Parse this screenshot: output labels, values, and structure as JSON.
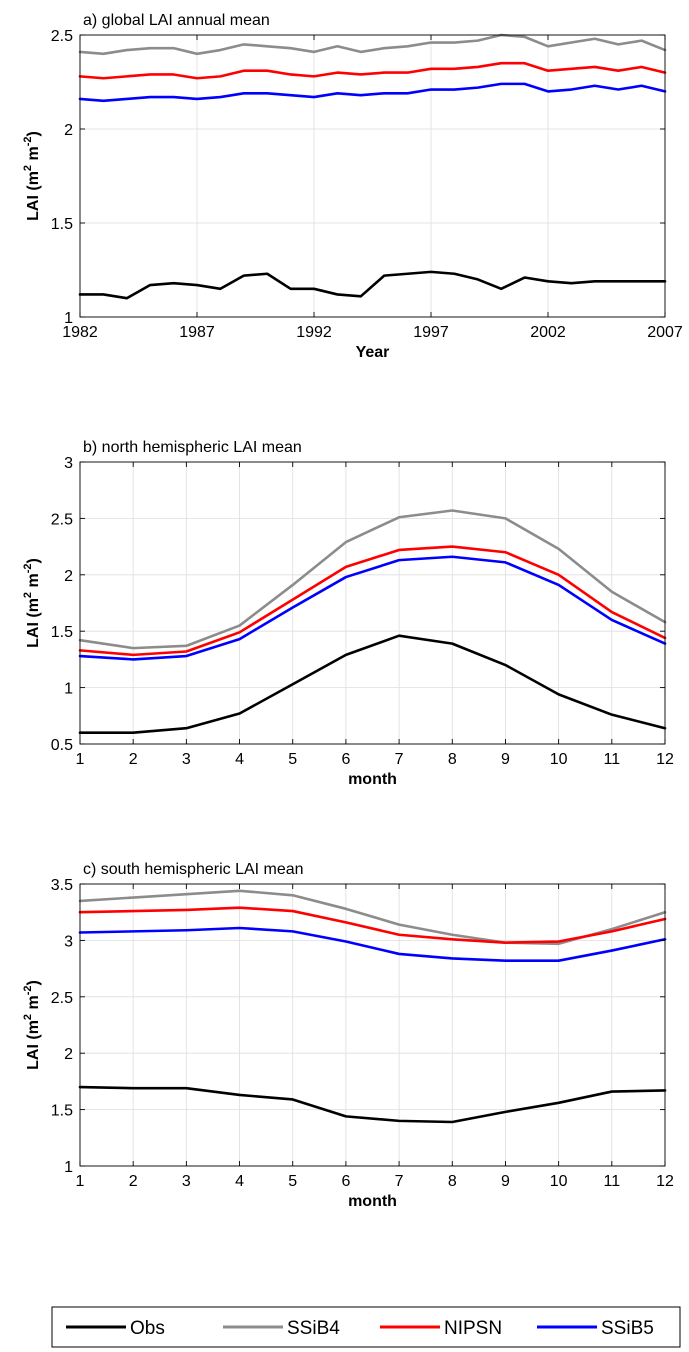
{
  "chart_data": [
    {
      "type": "line",
      "title": "a) global LAI annual mean",
      "xlabel": "Year",
      "ylabel": "LAI (m^2 m^-2)",
      "ylabel_parts": {
        "base": "LAI (m",
        "sup1": "2",
        "mid": " m",
        "sup2": "-2",
        "end": ")"
      },
      "xlim": [
        1982,
        2007
      ],
      "ylim": [
        1,
        2.5
      ],
      "xticks": [
        1982,
        1987,
        1992,
        1997,
        2002,
        2007
      ],
      "yticks": [
        1,
        1.5,
        2,
        2.5
      ],
      "ytick_labels": [
        "1",
        "1.5",
        "2",
        "2.5"
      ],
      "grid": true,
      "x": [
        1982,
        1983,
        1984,
        1985,
        1986,
        1987,
        1988,
        1989,
        1990,
        1991,
        1992,
        1993,
        1994,
        1995,
        1996,
        1997,
        1998,
        1999,
        2000,
        2001,
        2002,
        2003,
        2004,
        2005,
        2006,
        2007
      ],
      "series": [
        {
          "name": "Obs",
          "color": "#000000",
          "values": [
            1.12,
            1.12,
            1.1,
            1.17,
            1.18,
            1.17,
            1.15,
            1.22,
            1.23,
            1.15,
            1.15,
            1.12,
            1.11,
            1.22,
            1.23,
            1.24,
            1.23,
            1.2,
            1.15,
            1.21,
            1.19,
            1.18,
            1.19,
            1.19,
            1.19,
            1.19
          ]
        },
        {
          "name": "SSiB4",
          "color": "#8c8c8c",
          "values": [
            2.41,
            2.4,
            2.42,
            2.43,
            2.43,
            2.4,
            2.42,
            2.45,
            2.44,
            2.43,
            2.41,
            2.44,
            2.41,
            2.43,
            2.44,
            2.46,
            2.46,
            2.47,
            2.5,
            2.49,
            2.44,
            2.46,
            2.48,
            2.45,
            2.47,
            2.42
          ]
        },
        {
          "name": "NIPSN",
          "color": "#ff0000",
          "values": [
            2.28,
            2.27,
            2.28,
            2.29,
            2.29,
            2.27,
            2.28,
            2.31,
            2.31,
            2.29,
            2.28,
            2.3,
            2.29,
            2.3,
            2.3,
            2.32,
            2.32,
            2.33,
            2.35,
            2.35,
            2.31,
            2.32,
            2.33,
            2.31,
            2.33,
            2.3
          ]
        },
        {
          "name": "SSiB5",
          "color": "#0000ff",
          "values": [
            2.16,
            2.15,
            2.16,
            2.17,
            2.17,
            2.16,
            2.17,
            2.19,
            2.19,
            2.18,
            2.17,
            2.19,
            2.18,
            2.19,
            2.19,
            2.21,
            2.21,
            2.22,
            2.24,
            2.24,
            2.2,
            2.21,
            2.23,
            2.21,
            2.23,
            2.2
          ]
        }
      ]
    },
    {
      "type": "line",
      "title": "b) north hemispheric LAI mean",
      "xlabel": "month",
      "ylabel": "LAI (m^2 m^-2)",
      "ylabel_parts": {
        "base": "LAI (m",
        "sup1": "2",
        "mid": " m",
        "sup2": "-2",
        "end": ")"
      },
      "xlim": [
        1,
        12
      ],
      "ylim": [
        0.5,
        3
      ],
      "xticks": [
        1,
        2,
        3,
        4,
        5,
        6,
        7,
        8,
        9,
        10,
        11,
        12
      ],
      "yticks": [
        0.5,
        1,
        1.5,
        2,
        2.5,
        3
      ],
      "ytick_labels": [
        "0.5",
        "1",
        "1.5",
        "2",
        "2.5",
        "3"
      ],
      "grid": true,
      "x": [
        1,
        2,
        3,
        4,
        5,
        6,
        7,
        8,
        9,
        10,
        11,
        12
      ],
      "series": [
        {
          "name": "Obs",
          "color": "#000000",
          "values": [
            0.6,
            0.6,
            0.64,
            0.77,
            1.03,
            1.29,
            1.46,
            1.39,
            1.2,
            0.94,
            0.76,
            0.64
          ]
        },
        {
          "name": "SSiB4",
          "color": "#8c8c8c",
          "values": [
            1.42,
            1.35,
            1.37,
            1.55,
            1.91,
            2.29,
            2.51,
            2.57,
            2.5,
            2.23,
            1.85,
            1.58
          ]
        },
        {
          "name": "NIPSN",
          "color": "#ff0000",
          "values": [
            1.33,
            1.29,
            1.32,
            1.49,
            1.78,
            2.07,
            2.22,
            2.25,
            2.2,
            2.0,
            1.67,
            1.44
          ]
        },
        {
          "name": "SSiB5",
          "color": "#0000ff",
          "values": [
            1.28,
            1.25,
            1.28,
            1.43,
            1.71,
            1.98,
            2.13,
            2.16,
            2.11,
            1.91,
            1.6,
            1.39
          ]
        }
      ]
    },
    {
      "type": "line",
      "title": "c) south hemispheric LAI mean",
      "xlabel": "month",
      "ylabel": "LAI (m^2 m^-2)",
      "ylabel_parts": {
        "base": "LAI (m",
        "sup1": "2",
        "mid": " m",
        "sup2": "-2",
        "end": ")"
      },
      "xlim": [
        1,
        12
      ],
      "ylim": [
        1,
        3.5
      ],
      "xticks": [
        1,
        2,
        3,
        4,
        5,
        6,
        7,
        8,
        9,
        10,
        11,
        12
      ],
      "yticks": [
        1,
        1.5,
        2,
        2.5,
        3,
        3.5
      ],
      "ytick_labels": [
        "1",
        "1.5",
        "2",
        "2.5",
        "3",
        "3.5"
      ],
      "grid": true,
      "x": [
        1,
        2,
        3,
        4,
        5,
        6,
        7,
        8,
        9,
        10,
        11,
        12
      ],
      "series": [
        {
          "name": "Obs",
          "color": "#000000",
          "values": [
            1.7,
            1.69,
            1.69,
            1.63,
            1.59,
            1.44,
            1.4,
            1.39,
            1.48,
            1.56,
            1.66,
            1.67
          ]
        },
        {
          "name": "SSiB4",
          "color": "#8c8c8c",
          "values": [
            3.35,
            3.38,
            3.41,
            3.44,
            3.4,
            3.28,
            3.14,
            3.05,
            2.98,
            2.97,
            3.1,
            3.25
          ]
        },
        {
          "name": "NIPSN",
          "color": "#ff0000",
          "values": [
            3.25,
            3.26,
            3.27,
            3.29,
            3.26,
            3.16,
            3.05,
            3.01,
            2.98,
            2.99,
            3.08,
            3.19
          ]
        },
        {
          "name": "SSiB5",
          "color": "#0000ff",
          "values": [
            3.07,
            3.08,
            3.09,
            3.11,
            3.08,
            2.99,
            2.88,
            2.84,
            2.82,
            2.82,
            2.91,
            3.01
          ]
        }
      ]
    }
  ],
  "legend": {
    "placement": "bottom-center",
    "entries": [
      {
        "name": "Obs",
        "color": "#000000"
      },
      {
        "name": "SSiB4",
        "color": "#8c8c8c"
      },
      {
        "name": "NIPSN",
        "color": "#ff0000"
      },
      {
        "name": "SSiB5",
        "color": "#0000ff"
      }
    ]
  }
}
